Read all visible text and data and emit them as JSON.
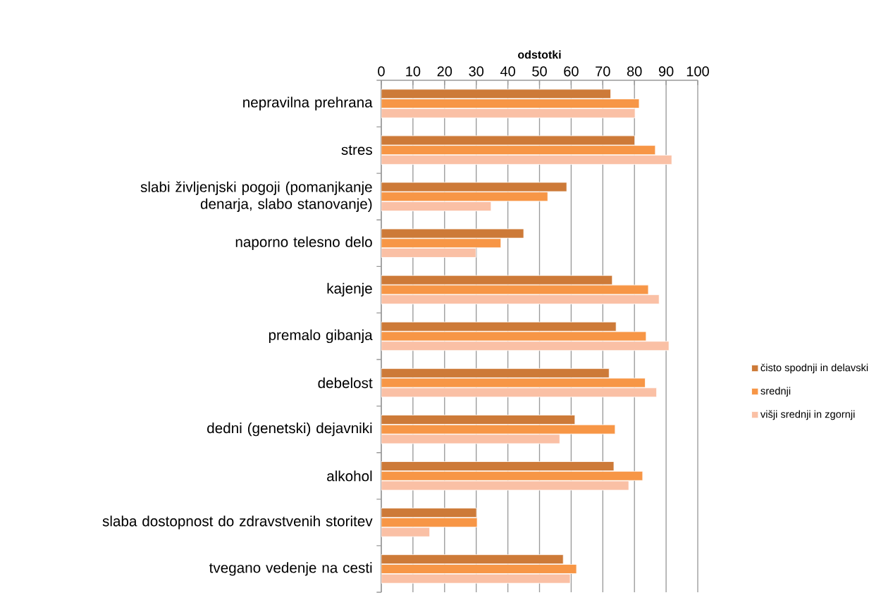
{
  "chart_data": {
    "type": "bar",
    "orientation": "horizontal",
    "xlabel": "odstotki",
    "categories": [
      "nepravilna prehrana",
      "stres",
      "slabi življenjski pogoji (pomanjkanje denarja, slabo stanovanje)",
      "naporno telesno delo",
      "kajenje",
      "premalo gibanja",
      "debelost",
      "dedni (genetski) dejavniki",
      "alkohol",
      "slaba dostopnost do zdravstvenih storitev",
      "tvegano vedenje na cesti"
    ],
    "series": [
      {
        "name": "čisto spodnji in delavski",
        "color": "#cd7a38",
        "values": [
          72.5,
          80.1,
          58.6,
          45.0,
          73.0,
          74.2,
          72.0,
          61.2,
          73.5,
          30.1,
          57.5
        ]
      },
      {
        "name": "srednji",
        "color": "#f79646",
        "values": [
          81.5,
          86.6,
          52.6,
          37.8,
          84.4,
          83.7,
          83.4,
          73.9,
          82.6,
          30.3,
          61.7
        ]
      },
      {
        "name": "višji srednji in zgornji",
        "color": "#fac0a5",
        "values": [
          80.2,
          91.8,
          34.7,
          29.9,
          87.8,
          90.9,
          87.0,
          56.4,
          78.2,
          15.3,
          59.7
        ]
      }
    ],
    "xlim": [
      0,
      100
    ],
    "xticks": [
      0,
      10,
      20,
      30,
      40,
      50,
      60,
      70,
      80,
      90,
      100
    ],
    "grid": "x",
    "legend": "right"
  }
}
